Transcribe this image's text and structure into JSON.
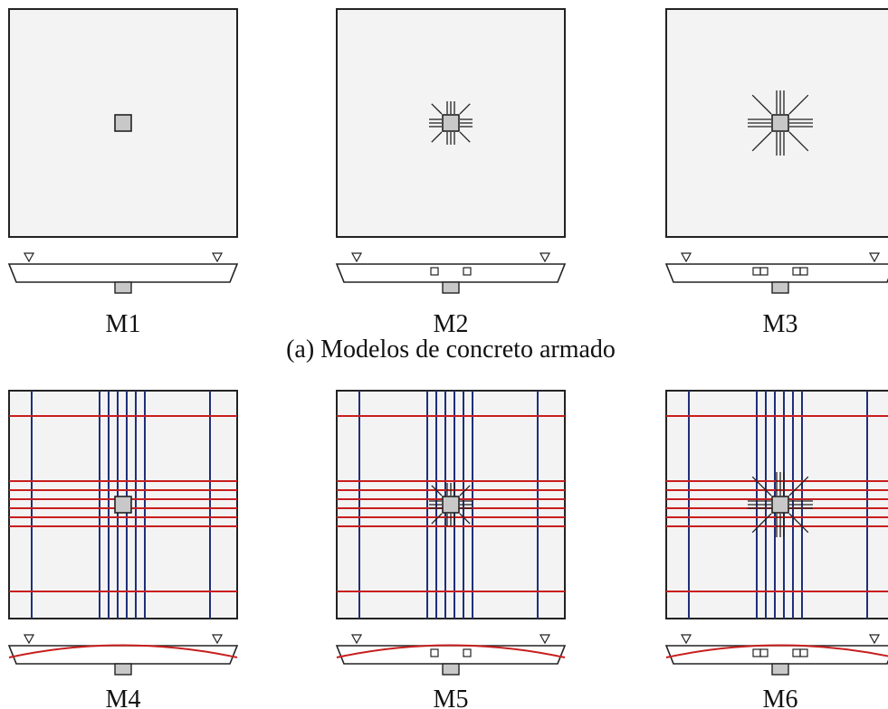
{
  "figure": {
    "caption_a": "(a) Modelos de concreto armado",
    "models": [
      {
        "label": "M1",
        "studs": "none",
        "tendons": false
      },
      {
        "label": "M2",
        "studs": "short",
        "tendons": false
      },
      {
        "label": "M3",
        "studs": "long",
        "tendons": false
      },
      {
        "label": "M4",
        "studs": "none",
        "tendons": true
      },
      {
        "label": "M5",
        "studs": "short",
        "tendons": true
      },
      {
        "label": "M6",
        "studs": "long",
        "tendons": true
      }
    ]
  },
  "colors": {
    "slab_fill": "#f3f3f4",
    "outline": "#222222",
    "column_fill": "#c8c8c8",
    "tendon_x": "#1f2f7a",
    "tendon_y": "#c81e1e"
  }
}
